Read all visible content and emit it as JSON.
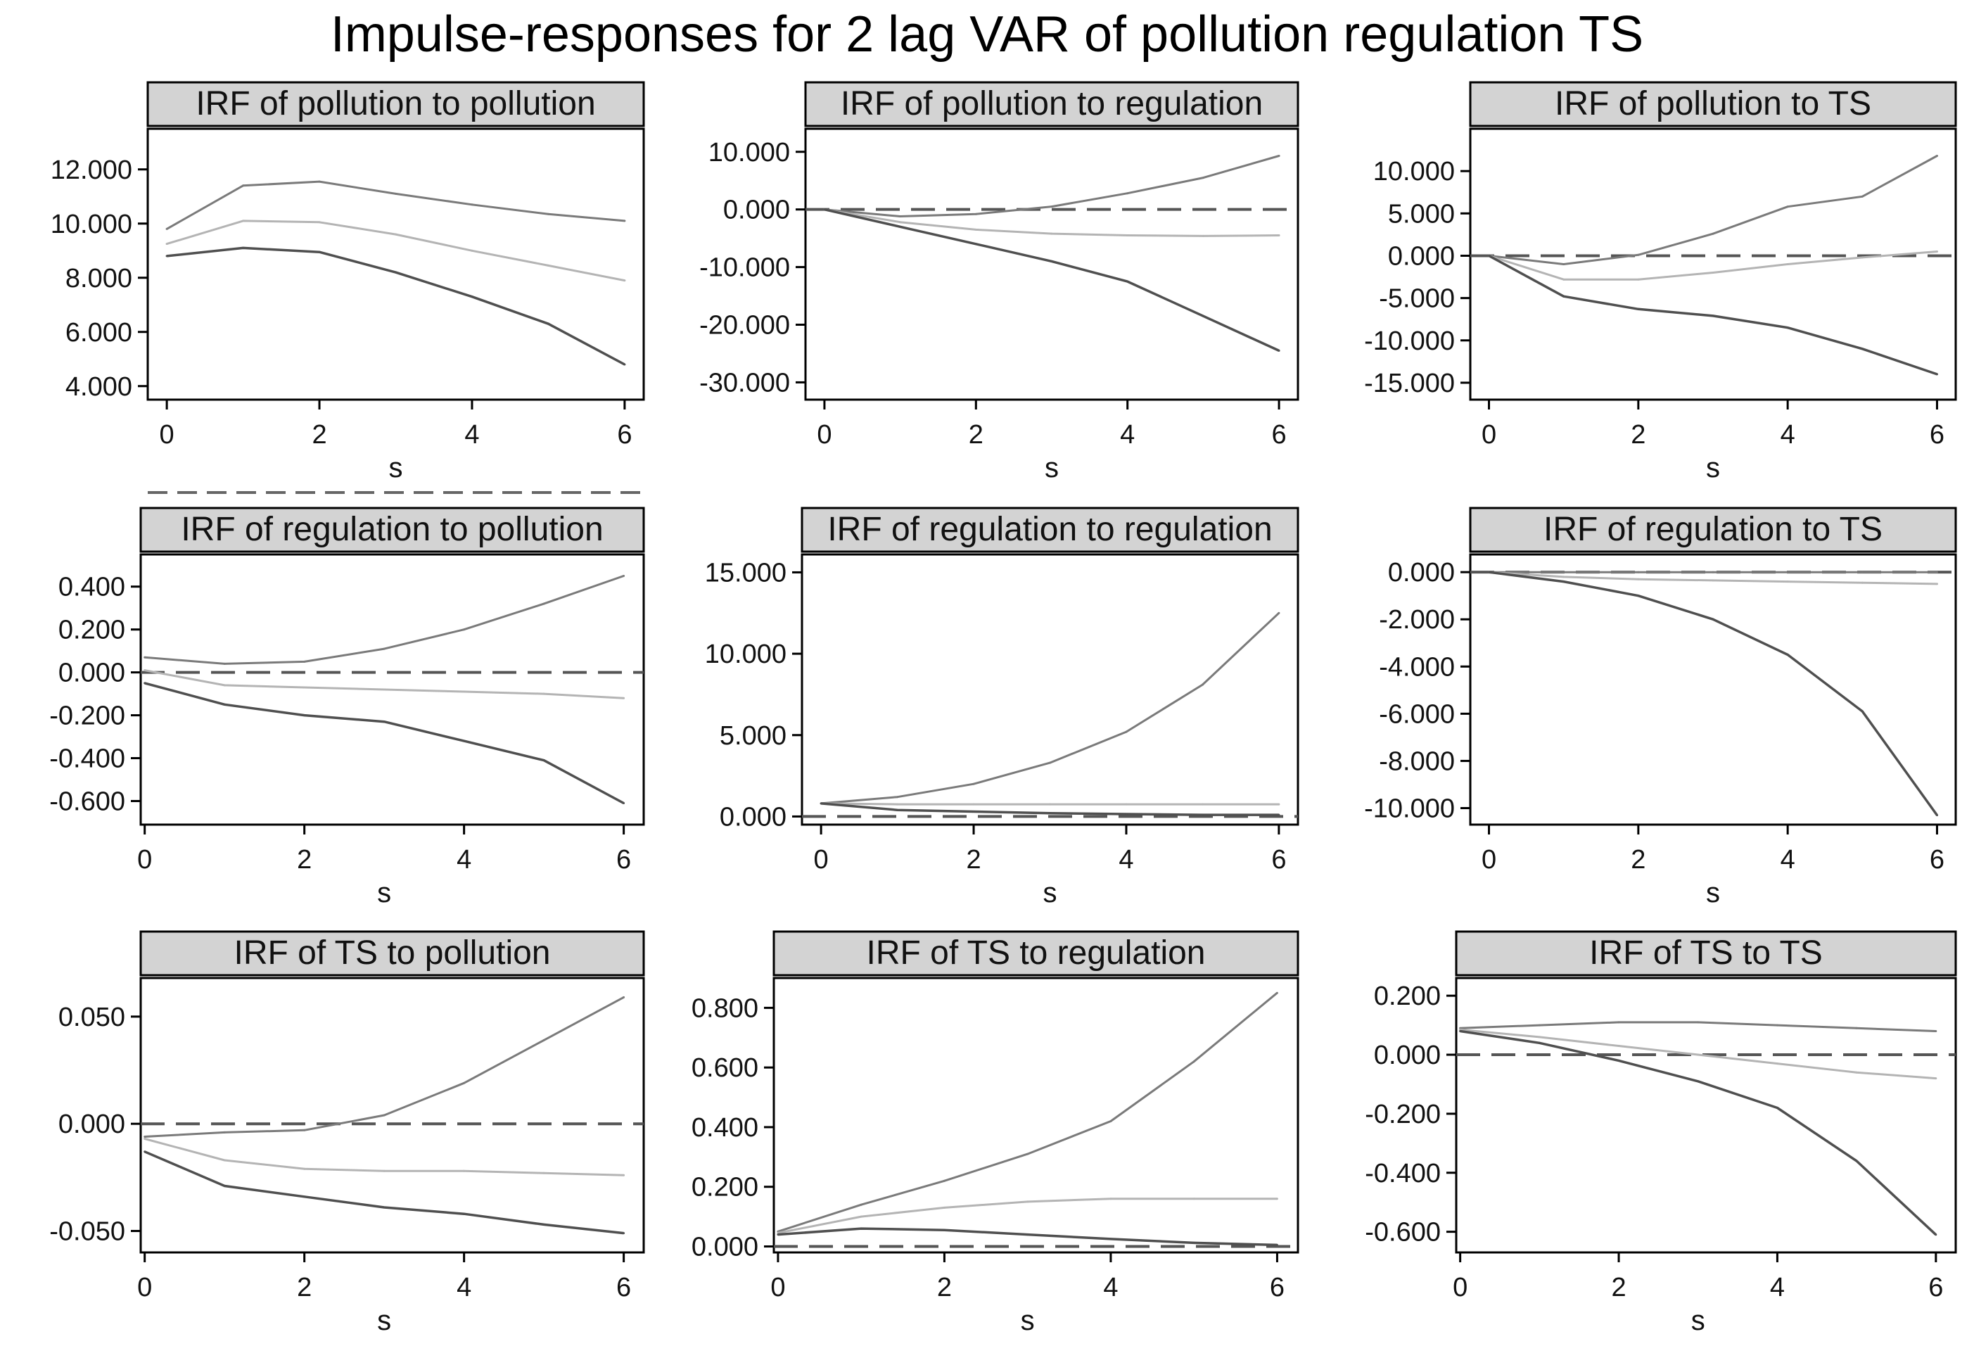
{
  "title": "Impulse-responses for 2 lag VAR of pollution regulation TS",
  "colors": {
    "upper": "#7a7a7a",
    "irf": "#b4b4b4",
    "lower": "#4f4f4f",
    "zero": "#555555",
    "header": "#d3d3d3"
  },
  "chart_data": [
    {
      "type": "line",
      "title": "IRF of pollution to pollution",
      "xlabel": "s",
      "xticks": [
        "0",
        "2",
        "4",
        "6"
      ],
      "yticks": [
        "4.000",
        "6.000",
        "8.000",
        "10.000",
        "12.000"
      ],
      "ylim": [
        3.5,
        13.5
      ],
      "xlim": [
        -0.25,
        6.25
      ],
      "zero_line": false,
      "x": [
        0,
        1,
        2,
        3,
        4,
        5,
        6
      ],
      "series": [
        {
          "name": "upper",
          "values": [
            9.8,
            11.4,
            11.55,
            11.1,
            10.7,
            10.35,
            10.1
          ]
        },
        {
          "name": "irf",
          "values": [
            9.25,
            10.1,
            10.05,
            9.6,
            9.0,
            8.45,
            7.9
          ]
        },
        {
          "name": "lower",
          "values": [
            8.8,
            9.1,
            8.95,
            8.2,
            7.3,
            6.3,
            4.8
          ]
        }
      ]
    },
    {
      "type": "line",
      "title": "IRF of pollution to regulation",
      "xlabel": "s",
      "xticks": [
        "0",
        "2",
        "4",
        "6"
      ],
      "yticks": [
        "-30.000",
        "-20.000",
        "-10.000",
        "0.000",
        "10.000"
      ],
      "ylim": [
        -33,
        14
      ],
      "xlim": [
        -0.25,
        6.25
      ],
      "zero_line": true,
      "x": [
        0,
        1,
        2,
        3,
        4,
        5,
        6
      ],
      "series": [
        {
          "name": "upper",
          "values": [
            0,
            -1.2,
            -0.8,
            0.5,
            2.8,
            5.5,
            9.3
          ]
        },
        {
          "name": "irf",
          "values": [
            0,
            -2.2,
            -3.5,
            -4.2,
            -4.5,
            -4.6,
            -4.5
          ]
        },
        {
          "name": "lower",
          "values": [
            0,
            -3.0,
            -6.0,
            -9.0,
            -12.5,
            -18.5,
            -24.5
          ]
        }
      ]
    },
    {
      "type": "line",
      "title": "IRF of pollution to TS",
      "xlabel": "s",
      "xticks": [
        "0",
        "2",
        "4",
        "6"
      ],
      "yticks": [
        "-15.000",
        "-10.000",
        "-5.000",
        "0.000",
        "5.000",
        "10.000"
      ],
      "ylim": [
        -17,
        15
      ],
      "xlim": [
        -0.25,
        6.25
      ],
      "zero_line": true,
      "x": [
        0,
        1,
        2,
        3,
        4,
        5,
        6
      ],
      "series": [
        {
          "name": "upper",
          "values": [
            0,
            -1.0,
            0.1,
            2.6,
            5.8,
            7.0,
            11.8
          ]
        },
        {
          "name": "irf",
          "values": [
            0,
            -2.8,
            -2.8,
            -2.0,
            -1.0,
            -0.2,
            0.5
          ]
        },
        {
          "name": "lower",
          "values": [
            0,
            -4.8,
            -6.3,
            -7.1,
            -8.5,
            -11.0,
            -14.0
          ]
        }
      ]
    },
    {
      "type": "line",
      "title": "IRF of regulation to pollution",
      "xlabel": "s",
      "xticks": [
        "0",
        "2",
        "4",
        "6"
      ],
      "yticks": [
        "-0.600",
        "-0.400",
        "-0.200",
        "0.000",
        "0.200",
        "0.400"
      ],
      "ylim": [
        -0.71,
        0.55
      ],
      "xlim": [
        -0.05,
        6.25
      ],
      "zero_line": true,
      "x": [
        0,
        1,
        2,
        3,
        4,
        5,
        6
      ],
      "series": [
        {
          "name": "upper",
          "values": [
            0.07,
            0.04,
            0.05,
            0.11,
            0.2,
            0.32,
            0.45
          ]
        },
        {
          "name": "irf",
          "values": [
            0.01,
            -0.06,
            -0.07,
            -0.08,
            -0.09,
            -0.1,
            -0.12
          ]
        },
        {
          "name": "lower",
          "values": [
            -0.05,
            -0.15,
            -0.2,
            -0.23,
            -0.32,
            -0.41,
            -0.61
          ]
        }
      ]
    },
    {
      "type": "line",
      "title": "IRF of regulation to regulation",
      "xlabel": "s",
      "xticks": [
        "0",
        "2",
        "4",
        "6"
      ],
      "yticks": [
        "0.000",
        "5.000",
        "10.000",
        "15.000"
      ],
      "ylim": [
        -0.5,
        16.1
      ],
      "xlim": [
        -0.25,
        6.25
      ],
      "zero_line": true,
      "x": [
        0,
        1,
        2,
        3,
        4,
        5,
        6
      ],
      "series": [
        {
          "name": "upper",
          "values": [
            0.8,
            1.2,
            2.0,
            3.3,
            5.2,
            8.1,
            12.5
          ]
        },
        {
          "name": "irf",
          "values": [
            0.8,
            0.75,
            0.75,
            0.75,
            0.75,
            0.75,
            0.75
          ]
        },
        {
          "name": "lower",
          "values": [
            0.8,
            0.4,
            0.3,
            0.2,
            0.15,
            0.1,
            0.1
          ]
        }
      ]
    },
    {
      "type": "line",
      "title": "IRF of regulation to TS",
      "xlabel": "s",
      "xticks": [
        "0",
        "2",
        "4",
        "6"
      ],
      "yticks": [
        "-10.000",
        "-8.000",
        "-6.000",
        "-4.000",
        "-2.000",
        "0.000"
      ],
      "ylim": [
        -10.7,
        0.75
      ],
      "xlim": [
        -0.25,
        6.25
      ],
      "zero_line": true,
      "x": [
        0,
        1,
        2,
        3,
        4,
        5,
        6
      ],
      "series": [
        {
          "name": "upper",
          "values": [
            0,
            0,
            0,
            0,
            0,
            0,
            0
          ]
        },
        {
          "name": "irf",
          "values": [
            0,
            -0.2,
            -0.3,
            -0.35,
            -0.4,
            -0.45,
            -0.5
          ]
        },
        {
          "name": "lower",
          "values": [
            0,
            -0.4,
            -1.0,
            -2.0,
            -3.5,
            -5.9,
            -10.3
          ]
        }
      ]
    },
    {
      "type": "line",
      "title": "IRF of TS to pollution",
      "xlabel": "s",
      "xticks": [
        "0",
        "2",
        "4",
        "6"
      ],
      "yticks": [
        "-0.050",
        "0.000",
        "0.050"
      ],
      "ylim": [
        -0.06,
        0.068
      ],
      "xlim": [
        -0.05,
        6.25
      ],
      "zero_line": true,
      "x": [
        0,
        1,
        2,
        3,
        4,
        5,
        6
      ],
      "series": [
        {
          "name": "upper",
          "values": [
            -0.006,
            -0.004,
            -0.003,
            0.004,
            0.019,
            0.039,
            0.059
          ]
        },
        {
          "name": "irf",
          "values": [
            -0.007,
            -0.017,
            -0.021,
            -0.022,
            -0.022,
            -0.023,
            -0.024
          ]
        },
        {
          "name": "lower",
          "values": [
            -0.013,
            -0.029,
            -0.034,
            -0.039,
            -0.042,
            -0.047,
            -0.051
          ]
        }
      ]
    },
    {
      "type": "line",
      "title": "IRF of TS to regulation",
      "xlabel": "s",
      "xticks": [
        "0",
        "2",
        "4",
        "6"
      ],
      "yticks": [
        "0.000",
        "0.200",
        "0.400",
        "0.600",
        "0.800"
      ],
      "ylim": [
        -0.02,
        0.9
      ],
      "xlim": [
        -0.05,
        6.25
      ],
      "zero_line": true,
      "x": [
        0,
        1,
        2,
        3,
        4,
        5,
        6
      ],
      "series": [
        {
          "name": "upper",
          "values": [
            0.05,
            0.14,
            0.22,
            0.31,
            0.42,
            0.62,
            0.85
          ]
        },
        {
          "name": "irf",
          "values": [
            0.045,
            0.1,
            0.13,
            0.15,
            0.16,
            0.16,
            0.16
          ]
        },
        {
          "name": "lower",
          "values": [
            0.04,
            0.06,
            0.055,
            0.04,
            0.025,
            0.012,
            0.005
          ]
        }
      ]
    },
    {
      "type": "line",
      "title": "IRF of TS to TS",
      "xlabel": "s",
      "xticks": [
        "0",
        "2",
        "4",
        "6"
      ],
      "yticks": [
        "-0.600",
        "-0.400",
        "-0.200",
        "0.000",
        "0.200"
      ],
      "ylim": [
        -0.67,
        0.26
      ],
      "xlim": [
        -0.05,
        6.25
      ],
      "zero_line": true,
      "x": [
        0,
        1,
        2,
        3,
        4,
        5,
        6
      ],
      "series": [
        {
          "name": "upper",
          "values": [
            0.09,
            0.1,
            0.11,
            0.11,
            0.1,
            0.09,
            0.08
          ]
        },
        {
          "name": "irf",
          "values": [
            0.085,
            0.06,
            0.03,
            0.0,
            -0.03,
            -0.06,
            -0.08
          ]
        },
        {
          "name": "lower",
          "values": [
            0.08,
            0.04,
            -0.02,
            -0.09,
            -0.18,
            -0.36,
            -0.61
          ]
        }
      ]
    }
  ]
}
